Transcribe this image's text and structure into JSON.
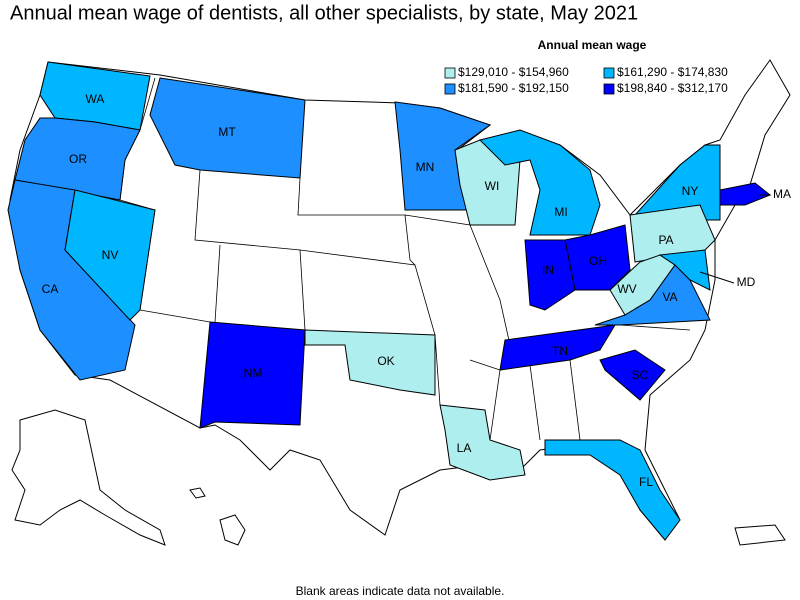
{
  "title": "Annual mean wage of dentists, all other specialists, by state, May 2021",
  "legend": {
    "title": "Annual mean wage",
    "items": [
      {
        "label": "$129,010 - $154,960",
        "color": "#aeeeee"
      },
      {
        "label": "$161,290 - $174,830",
        "color": "#00b7ff"
      },
      {
        "label": "$181,590 - $192,150",
        "color": "#1e8fff"
      },
      {
        "label": "$198,840 - $312,170",
        "color": "#0000ff"
      }
    ]
  },
  "states": [
    {
      "abbr": "WA",
      "bin": 1
    },
    {
      "abbr": "OR",
      "bin": 2
    },
    {
      "abbr": "CA",
      "bin": 2
    },
    {
      "abbr": "NV",
      "bin": 1
    },
    {
      "abbr": "MT",
      "bin": 2
    },
    {
      "abbr": "MN",
      "bin": 2
    },
    {
      "abbr": "WI",
      "bin": 0
    },
    {
      "abbr": "MI",
      "bin": 1
    },
    {
      "abbr": "NY",
      "bin": 1
    },
    {
      "abbr": "PA",
      "bin": 0
    },
    {
      "abbr": "WV",
      "bin": 0
    },
    {
      "abbr": "VA",
      "bin": 2
    },
    {
      "abbr": "MD",
      "bin": 1
    },
    {
      "abbr": "OH",
      "bin": 3
    },
    {
      "abbr": "IN",
      "bin": 3
    },
    {
      "abbr": "TN",
      "bin": 3
    },
    {
      "abbr": "SC",
      "bin": 3
    },
    {
      "abbr": "NM",
      "bin": 3
    },
    {
      "abbr": "OK",
      "bin": 0
    },
    {
      "abbr": "LA",
      "bin": 0
    },
    {
      "abbr": "FL",
      "bin": 1
    },
    {
      "abbr": "MA",
      "bin": 3
    }
  ],
  "note": "Blank areas indicate data not available."
}
